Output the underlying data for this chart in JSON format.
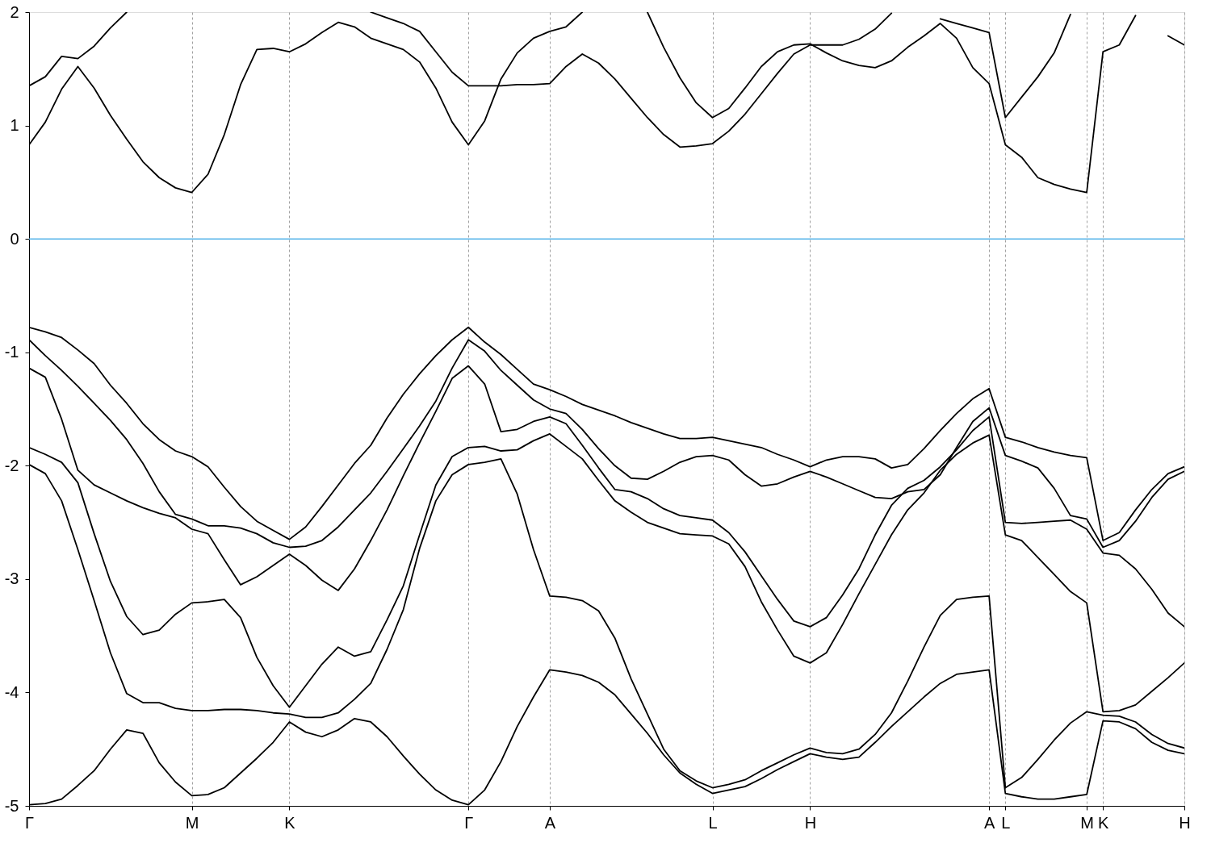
{
  "chart_data": {
    "type": "line",
    "ylim": [
      -5,
      2
    ],
    "categories": [
      "Γ",
      null,
      null,
      null,
      null,
      null,
      null,
      null,
      null,
      null,
      "M",
      null,
      null,
      null,
      null,
      null,
      "K",
      null,
      null,
      null,
      null,
      null,
      null,
      null,
      null,
      null,
      null,
      "Γ",
      null,
      null,
      null,
      null,
      "A",
      null,
      null,
      null,
      null,
      null,
      null,
      null,
      null,
      null,
      "L",
      null,
      null,
      null,
      null,
      null,
      "H",
      null,
      null,
      null,
      null,
      null,
      null,
      null,
      null,
      null,
      null,
      "A",
      "L",
      null,
      null,
      null,
      null,
      "M",
      "K",
      null,
      null,
      null,
      null,
      "H"
    ],
    "yticks": [
      -5,
      -4,
      -3,
      -2,
      -1,
      0,
      1,
      2
    ],
    "grid": "x",
    "ref_lines": [
      {
        "axis": "y",
        "value": 0,
        "color": "#56b4e9"
      }
    ],
    "series": [
      {
        "color": "#000000",
        "values": [
          -0.78,
          -0.82,
          -0.87,
          -0.98,
          -1.1,
          -1.29,
          -1.45,
          -1.63,
          -1.77,
          -1.87,
          -1.92,
          -2.01,
          -2.19,
          -2.36,
          -2.49,
          -2.57,
          -2.65,
          -2.54,
          -2.36,
          -2.17,
          -1.98,
          -1.82,
          -1.58,
          -1.37,
          -1.19,
          -1.03,
          -0.89,
          -0.78,
          -0.91,
          -1.02,
          -1.15,
          -1.28,
          -1.33,
          -1.39,
          -1.46,
          -1.51,
          -1.56,
          -1.62,
          -1.67,
          -1.72,
          -1.76,
          -1.76,
          -1.75,
          -1.78,
          -1.81,
          -1.84,
          -1.9,
          -1.95,
          -2.01,
          -1.95,
          -1.92,
          -1.92,
          -1.94,
          -2.02,
          -1.99,
          -1.85,
          -1.69,
          -1.54,
          -1.41,
          -1.32,
          -1.75,
          -1.79,
          -1.84,
          -1.88,
          -1.91,
          -1.93,
          -2.66,
          -2.59,
          -2.39,
          -2.21,
          -2.07,
          -2.01
        ]
      },
      {
        "color": "#000000",
        "values": [
          -0.89,
          -1.03,
          -1.16,
          -1.3,
          -1.45,
          -1.6,
          -1.77,
          -1.98,
          -2.23,
          -2.43,
          -2.47,
          -2.53,
          -2.53,
          -2.55,
          -2.6,
          -2.68,
          -2.72,
          -2.71,
          -2.66,
          -2.54,
          -2.39,
          -2.24,
          -2.05,
          -1.85,
          -1.65,
          -1.43,
          -1.14,
          -0.89,
          -0.99,
          -1.16,
          -1.29,
          -1.42,
          -1.5,
          -1.54,
          -1.68,
          -1.85,
          -2.0,
          -2.11,
          -2.12,
          -2.05,
          -1.97,
          -1.92,
          -1.91,
          -1.95,
          -2.08,
          -2.18,
          -2.16,
          -2.1,
          -2.05,
          -2.1,
          -2.16,
          -2.22,
          -2.28,
          -2.29,
          -2.23,
          -2.21,
          -2.08,
          -1.84,
          -1.61,
          -1.49,
          -1.91,
          -1.96,
          -2.02,
          -2.2,
          -2.44,
          -2.47,
          -2.72,
          -2.66,
          -2.49,
          -2.28,
          -2.12,
          -2.05
        ]
      },
      {
        "color": "#000000",
        "values": [
          -1.14,
          -1.22,
          -1.59,
          -2.04,
          -2.17,
          -2.24,
          -2.31,
          -2.37,
          -2.42,
          -2.46,
          -2.56,
          -2.6,
          -2.83,
          -3.05,
          -2.98,
          -2.88,
          -2.78,
          -2.88,
          -3.01,
          -3.1,
          -2.91,
          -2.66,
          -2.39,
          -2.09,
          -1.8,
          -1.52,
          -1.23,
          -1.12,
          -1.28,
          -1.7,
          -1.68,
          -1.61,
          -1.57,
          -1.63,
          -1.82,
          -2.02,
          -2.21,
          -2.23,
          -2.29,
          -2.38,
          -2.44,
          -2.46,
          -2.48,
          -2.59,
          -2.76,
          -2.97,
          -3.18,
          -3.37,
          -3.42,
          -3.34,
          -3.14,
          -2.91,
          -2.61,
          -2.35,
          -2.2,
          -2.13,
          -2.01,
          -1.86,
          -1.69,
          -1.57,
          -2.5,
          -2.51,
          -2.5,
          -2.49,
          -2.48,
          -2.56,
          -2.77,
          -2.79,
          -2.91,
          -3.09,
          -3.3,
          -3.42
        ]
      },
      {
        "color": "#000000",
        "values": [
          -1.84,
          -1.9,
          -1.97,
          -2.15,
          -2.6,
          -3.02,
          -3.33,
          -3.49,
          -3.45,
          -3.31,
          -3.21,
          -3.2,
          -3.18,
          -3.34,
          -3.69,
          -3.94,
          -4.13,
          -3.94,
          -3.75,
          -3.6,
          -3.68,
          -3.64,
          -3.36,
          -3.06,
          -2.61,
          -2.17,
          -1.92,
          -1.84,
          -1.83,
          -1.87,
          -1.86,
          -1.78,
          -1.72,
          -1.83,
          -1.94,
          -2.13,
          -2.31,
          -2.41,
          -2.5,
          -2.55,
          -2.6,
          -2.61,
          -2.62,
          -2.69,
          -2.89,
          -3.2,
          -3.45,
          -3.68,
          -3.74,
          -3.65,
          -3.4,
          -3.13,
          -2.87,
          -2.61,
          -2.39,
          -2.24,
          -2.04,
          -1.9,
          -1.8,
          -1.73,
          -2.61,
          -2.66,
          -2.81,
          -2.96,
          -3.11,
          -3.21,
          -4.17,
          -4.16,
          -4.11,
          -3.99,
          -3.87,
          -3.74
        ]
      },
      {
        "color": "#000000",
        "values": [
          -1.99,
          -2.07,
          -2.31,
          -2.74,
          -3.19,
          -3.65,
          -4.01,
          -4.09,
          -4.09,
          -4.14,
          -4.16,
          -4.16,
          -4.15,
          -4.15,
          -4.16,
          -4.18,
          -4.19,
          -4.22,
          -4.22,
          -4.18,
          -4.06,
          -3.92,
          -3.62,
          -3.27,
          -2.73,
          -2.31,
          -2.08,
          -1.99,
          -1.97,
          -1.94,
          -2.25,
          -2.74,
          -3.15,
          -3.16,
          -3.19,
          -3.28,
          -3.52,
          -3.88,
          -4.19,
          -4.5,
          -4.69,
          -4.78,
          -4.84,
          -4.81,
          -4.77,
          -4.69,
          -4.62,
          -4.55,
          -4.49,
          -4.53,
          -4.54,
          -4.5,
          -4.37,
          -4.18,
          -3.9,
          -3.6,
          -3.32,
          -3.18,
          -3.16,
          -3.15,
          -4.84,
          -4.75,
          -4.59,
          -4.42,
          -4.27,
          -4.17,
          -4.2,
          -4.21,
          -4.26,
          -4.37,
          -4.45,
          -4.49
        ]
      },
      {
        "color": "#000000",
        "values": [
          -4.99,
          -4.98,
          -4.94,
          -4.82,
          -4.69,
          -4.5,
          -4.33,
          -4.36,
          -4.62,
          -4.79,
          -4.91,
          -4.9,
          -4.84,
          -4.71,
          -4.58,
          -4.44,
          -4.26,
          -4.35,
          -4.39,
          -4.33,
          -4.23,
          -4.26,
          -4.39,
          -4.56,
          -4.72,
          -4.86,
          -4.95,
          -4.99,
          -4.86,
          -4.61,
          -4.3,
          -4.04,
          -3.8,
          -3.82,
          -3.85,
          -3.91,
          -4.02,
          -4.19,
          -4.36,
          -4.55,
          -4.71,
          -4.81,
          -4.89,
          -4.86,
          -4.83,
          -4.76,
          -4.68,
          -4.61,
          -4.54,
          -4.57,
          -4.59,
          -4.57,
          -4.44,
          -4.3,
          -4.17,
          -4.04,
          -3.92,
          -3.84,
          -3.82,
          -3.8,
          -4.89,
          -4.92,
          -4.94,
          -4.94,
          -4.92,
          -4.9,
          -4.25,
          -4.26,
          -4.32,
          -4.44,
          -4.51,
          -4.54
        ]
      },
      {
        "color": "#000000",
        "values": [
          0.83,
          1.03,
          1.32,
          1.52,
          1.33,
          1.09,
          0.88,
          0.68,
          0.54,
          0.45,
          0.41,
          0.57,
          0.92,
          1.36,
          1.67,
          1.68,
          1.65,
          1.72,
          1.82,
          1.91,
          1.87,
          1.77,
          1.72,
          1.67,
          1.56,
          1.33,
          1.03,
          0.83,
          1.04,
          1.41,
          1.64,
          1.77,
          1.83,
          1.87,
          2.0,
          null,
          null,
          null,
          2.0,
          1.69,
          1.42,
          1.2,
          1.07,
          1.15,
          1.33,
          1.52,
          1.65,
          1.71,
          1.72,
          1.64,
          1.57,
          1.53,
          1.51,
          1.57,
          1.69,
          1.79,
          1.9,
          1.77,
          1.51,
          1.37,
          0.83,
          0.72,
          0.54,
          0.48,
          0.44,
          0.41,
          1.65,
          1.71,
          1.97,
          null,
          1.79,
          1.71
        ]
      },
      {
        "color": "#000000",
        "values": [
          1.35,
          1.43,
          1.61,
          1.59,
          1.7,
          1.86,
          2.0,
          null,
          null,
          null,
          null,
          null,
          null,
          null,
          null,
          null,
          null,
          null,
          null,
          null,
          null,
          2.0,
          1.95,
          1.9,
          1.83,
          1.65,
          1.47,
          1.35,
          1.35,
          1.35,
          1.36,
          1.36,
          1.37,
          1.52,
          1.63,
          1.55,
          1.41,
          1.24,
          1.07,
          0.92,
          0.81,
          0.82,
          0.84,
          0.95,
          1.1,
          1.28,
          1.46,
          1.63,
          1.71,
          1.71,
          1.71,
          1.76,
          1.85,
          1.99,
          null,
          null,
          1.94,
          1.9,
          1.86,
          1.82,
          1.07,
          1.25,
          1.43,
          1.64,
          1.98,
          null,
          null,
          null,
          null,
          null,
          null,
          null
        ]
      }
    ]
  }
}
